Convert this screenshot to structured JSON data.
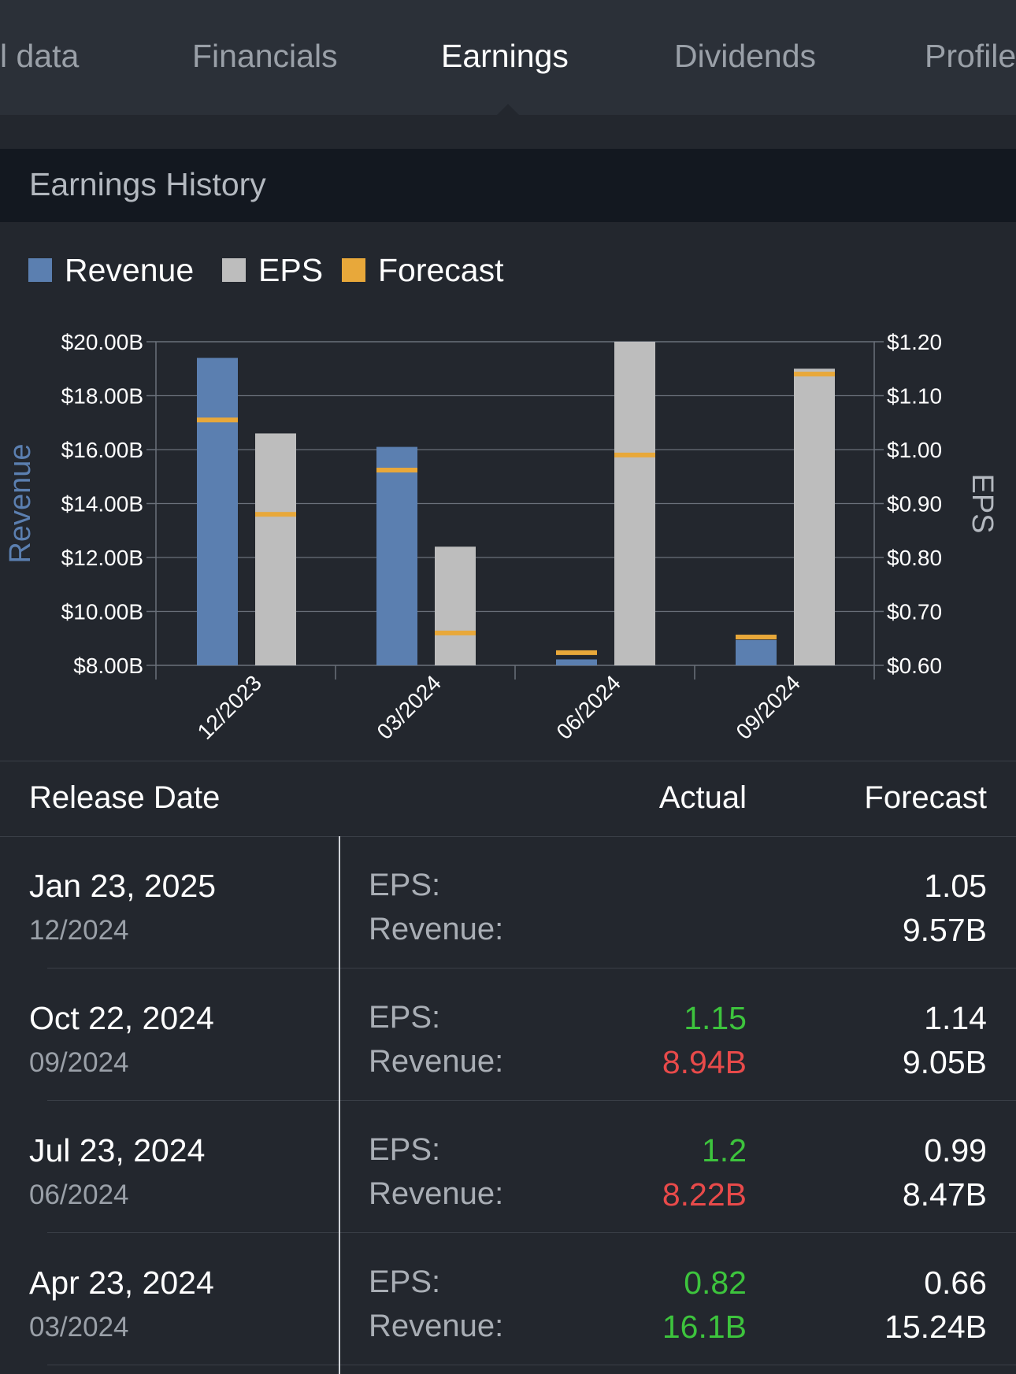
{
  "tabs": [
    {
      "label": "l data",
      "active": false
    },
    {
      "label": "Financials",
      "active": false
    },
    {
      "label": "Earnings",
      "active": true
    },
    {
      "label": "Dividends",
      "active": false
    },
    {
      "label": "Profile",
      "active": false
    }
  ],
  "section": {
    "title": "Earnings History"
  },
  "legend": [
    {
      "label": "Revenue",
      "color": "#5b7fb0"
    },
    {
      "label": "EPS",
      "color": "#bdbdbd"
    },
    {
      "label": "Forecast",
      "color": "#e8a83a"
    }
  ],
  "chart_data": {
    "type": "bar",
    "categories": [
      "12/2023",
      "03/2024",
      "06/2024",
      "09/2024"
    ],
    "series": [
      {
        "name": "Revenue",
        "axis": "left",
        "color": "#5b7fb0",
        "values": [
          19.4,
          16.1,
          8.22,
          8.94
        ],
        "forecast": [
          17.1,
          15.24,
          8.47,
          9.05
        ]
      },
      {
        "name": "EPS",
        "axis": "right",
        "color": "#bdbdbd",
        "values": [
          1.03,
          0.82,
          1.2,
          1.15
        ],
        "forecast": [
          0.88,
          0.66,
          0.99,
          1.14
        ]
      }
    ],
    "forecast_color": "#e8a83a",
    "ylabel_left": "Revenue",
    "ylabel_right": "EPS",
    "ylim_left": [
      8,
      20
    ],
    "ylim_right": [
      0.6,
      1.2
    ],
    "left_ticks": [
      "$8.00B",
      "$10.00B",
      "$12.00B",
      "$14.00B",
      "$16.00B",
      "$18.00B",
      "$20.00B"
    ],
    "right_ticks": [
      "$0.60",
      "$0.70",
      "$0.80",
      "$0.90",
      "$1.00",
      "$1.10",
      "$1.20"
    ],
    "grid": true
  },
  "table": {
    "headers": {
      "release_date": "Release Date",
      "actual": "Actual",
      "forecast": "Forecast"
    },
    "eps_label": "EPS:",
    "revenue_label": "Revenue:",
    "rows": [
      {
        "date": "Jan 23, 2025",
        "period": "12/2024",
        "eps_actual": "",
        "eps_actual_color": "#3dc43d",
        "rev_actual": "",
        "rev_actual_color": "#e84a4a",
        "eps_forecast": "1.05",
        "rev_forecast": "9.57B"
      },
      {
        "date": "Oct 22, 2024",
        "period": "09/2024",
        "eps_actual": "1.15",
        "eps_actual_color": "#3dc43d",
        "rev_actual": "8.94B",
        "rev_actual_color": "#e84a4a",
        "eps_forecast": "1.14",
        "rev_forecast": "9.05B"
      },
      {
        "date": "Jul 23, 2024",
        "period": "06/2024",
        "eps_actual": "1.2",
        "eps_actual_color": "#3dc43d",
        "rev_actual": "8.22B",
        "rev_actual_color": "#e84a4a",
        "eps_forecast": "0.99",
        "rev_forecast": "8.47B"
      },
      {
        "date": "Apr 23, 2024",
        "period": "03/2024",
        "eps_actual": "0.82",
        "eps_actual_color": "#3dc43d",
        "rev_actual": "16.1B",
        "rev_actual_color": "#3dc43d",
        "eps_forecast": "0.66",
        "rev_forecast": "15.24B"
      }
    ]
  }
}
